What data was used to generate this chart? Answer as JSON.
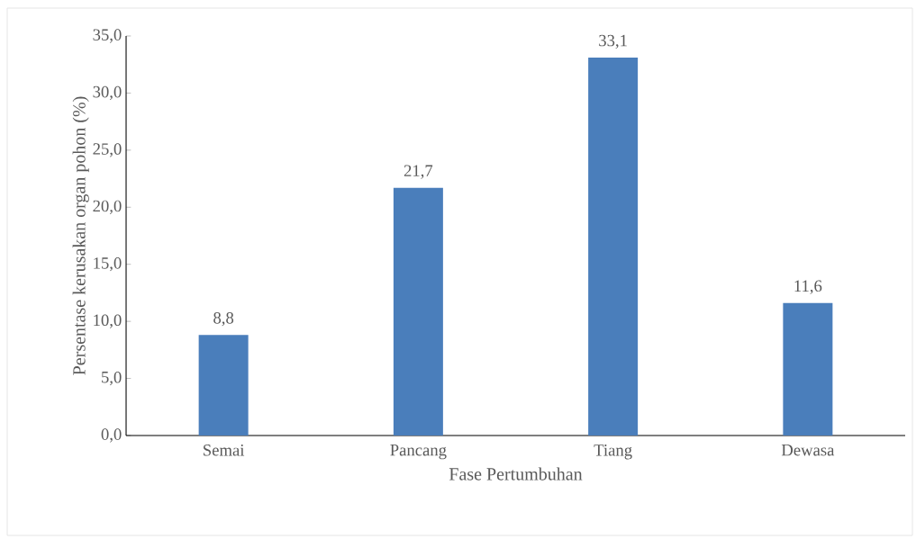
{
  "chart_data": {
    "type": "bar",
    "xlabel": "Fase Pertumbuhan",
    "ylabel": "Persentase kerusakan organ pohon (%)",
    "categories": [
      "Semai",
      "Pancang",
      "Tiang",
      "Dewasa"
    ],
    "values": [
      8.8,
      21.7,
      33.1,
      11.6
    ],
    "value_labels": [
      "8,8",
      "21,7",
      "33,1",
      "11,6"
    ],
    "color": "#4a7ebb",
    "ylim": [
      0,
      35
    ],
    "yticks": [
      {
        "value": 0,
        "label": "0,0"
      },
      {
        "value": 5,
        "label": "5,0"
      },
      {
        "value": 10,
        "label": "10,0"
      },
      {
        "value": 15,
        "label": "15,0"
      },
      {
        "value": 20,
        "label": "20,0"
      },
      {
        "value": 25,
        "label": "25,0"
      },
      {
        "value": 30,
        "label": "30,0"
      },
      {
        "value": 35,
        "label": "35,0"
      }
    ],
    "grid": false
  }
}
